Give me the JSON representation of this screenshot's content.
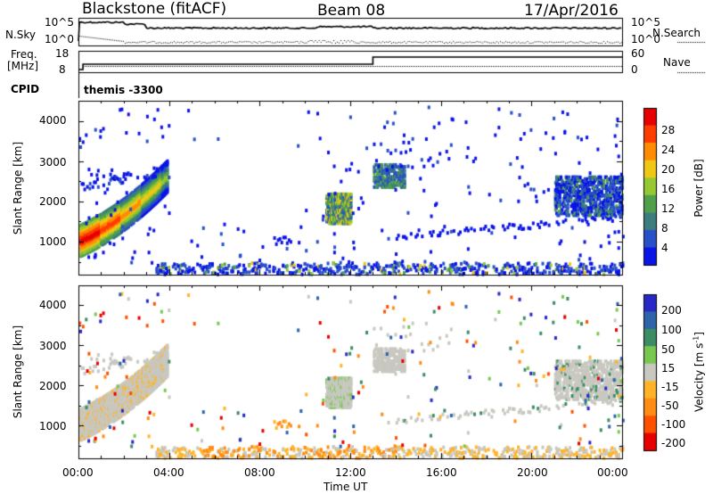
{
  "header": {
    "site": "Blackstone (fitACF)",
    "beam": "Beam 08",
    "date": "17/Apr/2016"
  },
  "side_labels": {
    "nsky": "N.Sky",
    "nsearch": "N.Search",
    "freq_line1": "Freq.",
    "freq_line2": "[MHz]",
    "nave": "Nave",
    "cpid": "CPID"
  },
  "cpid_text": "themis -3300",
  "chart_data": [
    {
      "type": "line",
      "panel": "noise",
      "series": [],
      "y_ticks_left": [
        "10^5",
        "10^0"
      ],
      "y_ticks_right": [
        "10^5",
        "10^0"
      ]
    },
    {
      "type": "line",
      "panel": "frequency / nave",
      "y_ticks_left": [
        "18",
        "8"
      ],
      "y_ticks_right": [
        "60",
        "0"
      ],
      "frequency_mhz": [
        {
          "from": "00:00",
          "to": "00:20",
          "value": 8.0
        },
        {
          "from": "00:20",
          "to": "13:00",
          "value": 10.5
        },
        {
          "from": "13:00",
          "to": "24:00",
          "value": 15.5
        }
      ]
    },
    {
      "type": "heatmap",
      "panel": "power",
      "ylabel": "Slant Range [km]",
      "yticks": [
        1000,
        2000,
        3000,
        4000
      ],
      "ylim": [
        180,
        4500
      ],
      "xlim_hours": [
        0,
        24
      ],
      "colorbar": {
        "label": "Power [dB]",
        "ticks": [
          4,
          8,
          12,
          16,
          20,
          24,
          28
        ],
        "range": [
          0,
          30
        ],
        "colors": [
          "#0a14e6",
          "#2850c8",
          "#3c7d7d",
          "#50a04b",
          "#96c832",
          "#f0c814",
          "#ff8c00",
          "#ff3c00",
          "#e60000"
        ]
      }
    },
    {
      "type": "heatmap",
      "panel": "velocity",
      "ylabel": "Slant Range [km]",
      "yticks": [
        1000,
        2000,
        3000,
        4000
      ],
      "ylim": [
        180,
        4500
      ],
      "xlim_hours": [
        0,
        24
      ],
      "xlabel": "Time UT",
      "xticks": [
        "00:00",
        "04:00",
        "08:00",
        "12:00",
        "16:00",
        "20:00",
        "00:00"
      ],
      "colorbar": {
        "label": "Velocity [m s^-1]",
        "ticks": [
          "200",
          "100",
          "50",
          "15",
          "-15",
          "-50",
          "-100",
          "-200"
        ],
        "colors": [
          "#2828c8",
          "#2d64aa",
          "#3c8c64",
          "#78c850",
          "#c8c8c0",
          "#ffb428",
          "#ff8c14",
          "#ff5000",
          "#e60000"
        ]
      }
    }
  ]
}
